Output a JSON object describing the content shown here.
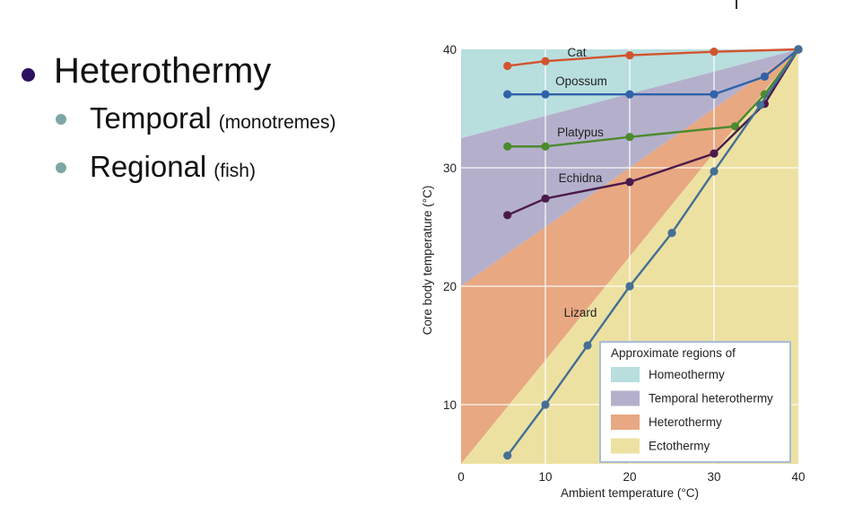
{
  "slide": {
    "bullets": [
      {
        "level": 1,
        "text": "Heterothermy",
        "note": ""
      },
      {
        "level": 2,
        "text": "Temporal",
        "note": "(monotremes)"
      },
      {
        "level": 2,
        "text": "Regional",
        "note": "(fish)"
      }
    ],
    "colors": {
      "bullet_level1": "#2e1160",
      "bullet_level2": "#7fa6a6"
    }
  },
  "chart_data": {
    "type": "line",
    "title": "",
    "xlabel": "Ambient temperature (°C)",
    "ylabel": "Core body temperature (°C)",
    "xlim": [
      0,
      40
    ],
    "ylim": [
      5,
      40
    ],
    "x_ticks": [
      "0",
      "10",
      "20",
      "30",
      "40"
    ],
    "y_ticks": [
      "10",
      "20",
      "30",
      "40"
    ],
    "grid": true,
    "regions": [
      {
        "name": "Homeothermy",
        "color": "#b9dede"
      },
      {
        "name": "Temporal heterothermy",
        "color": "#b4b0cc"
      },
      {
        "name": "Heterothermy",
        "color": "#e8a882"
      },
      {
        "name": "Ectothermy",
        "color": "#ede1a2"
      }
    ],
    "legend": {
      "title": "Approximate regions of",
      "position": "lower right"
    },
    "series": [
      {
        "name": "Cat",
        "color": "#d2542e",
        "x": [
          5.5,
          10,
          20,
          30,
          40
        ],
        "y": [
          38.6,
          39.0,
          39.5,
          39.8,
          40.0
        ]
      },
      {
        "name": "Opossum",
        "color": "#2f62a8",
        "x": [
          5.5,
          10,
          20,
          30,
          36,
          40
        ],
        "y": [
          36.2,
          36.2,
          36.2,
          36.2,
          37.7,
          40.0
        ]
      },
      {
        "name": "Platypus",
        "color": "#4c8a2e",
        "x": [
          5.5,
          10,
          20,
          32.5,
          36,
          40
        ],
        "y": [
          31.8,
          31.8,
          32.6,
          33.5,
          36.2,
          40.0
        ]
      },
      {
        "name": "Echidna",
        "color": "#4a1a4a",
        "x": [
          5.5,
          10,
          20,
          30,
          36,
          40
        ],
        "y": [
          26.0,
          27.4,
          28.8,
          31.2,
          35.4,
          40.0
        ]
      },
      {
        "name": "Lizard",
        "color": "#456f95",
        "x": [
          5.5,
          10,
          15,
          20,
          25,
          30,
          35.5,
          40
        ],
        "y": [
          5.7,
          10.0,
          15.0,
          20.0,
          24.5,
          29.7,
          35.3,
          40.0
        ]
      }
    ]
  }
}
